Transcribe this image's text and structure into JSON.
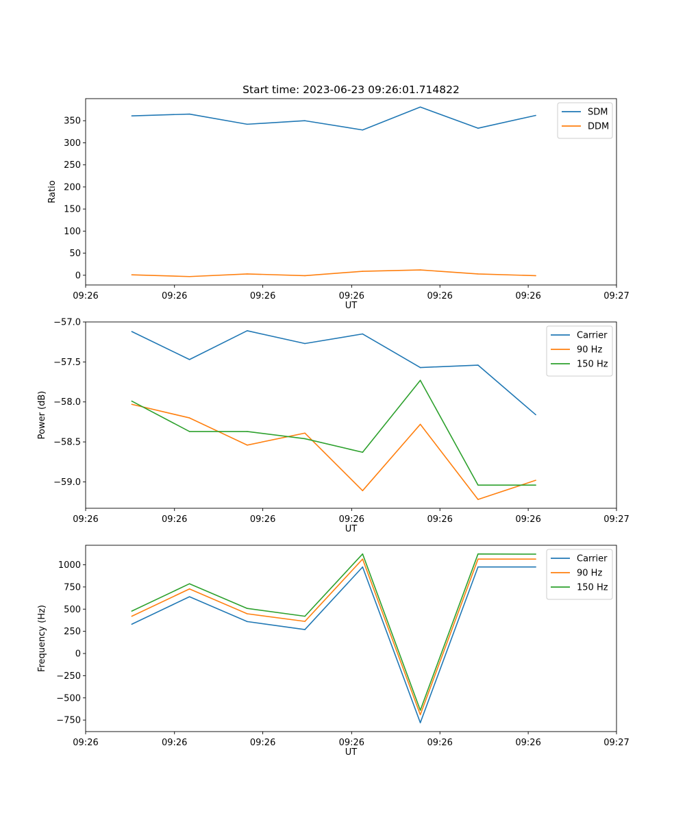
{
  "figure": {
    "title": "Start time: 2023-06-23 09:26:01.714822"
  },
  "chart_data": [
    {
      "type": "line",
      "title": "Start time: 2023-06-23 09:26:01.714822",
      "xlabel": "UT",
      "ylabel": "Ratio",
      "x": [
        1,
        2,
        3,
        4,
        5,
        6,
        7,
        8
      ],
      "xlim": [
        0.2,
        9.4
      ],
      "x_ticks": [
        0.2,
        1.74,
        3.27,
        4.81,
        6.34,
        7.87,
        9.4
      ],
      "x_tick_labels": [
        "09:26",
        "09:26",
        "09:26",
        "09:26",
        "09:26",
        "09:26",
        "09:27"
      ],
      "ylim": [
        -22,
        400
      ],
      "y_ticks": [
        0,
        50,
        100,
        150,
        200,
        250,
        300,
        350
      ],
      "y_tick_labels": [
        "0",
        "50",
        "100",
        "150",
        "200",
        "250",
        "300",
        "350"
      ],
      "grid": false,
      "legend_position": "upper right",
      "series": [
        {
          "name": "SDM",
          "color": "#1f77b4",
          "values": [
            361,
            365,
            342,
            350,
            329,
            381,
            333,
            362
          ]
        },
        {
          "name": "DDM",
          "color": "#ff7f0e",
          "values": [
            1,
            -3,
            3,
            -1,
            9,
            12,
            3,
            -1
          ]
        }
      ]
    },
    {
      "type": "line",
      "xlabel": "UT",
      "ylabel": "Power (dB)",
      "x": [
        1,
        2,
        3,
        4,
        5,
        6,
        7,
        8
      ],
      "xlim": [
        0.2,
        9.4
      ],
      "x_ticks": [
        0.2,
        1.74,
        3.27,
        4.81,
        6.34,
        7.87,
        9.4
      ],
      "x_tick_labels": [
        "09:26",
        "09:26",
        "09:26",
        "09:26",
        "09:26",
        "09:26",
        "09:27"
      ],
      "ylim": [
        -59.33,
        -57.0
      ],
      "y_ticks": [
        -57.0,
        -57.5,
        -58.0,
        -58.5,
        -59.0
      ],
      "y_tick_labels": [
        "−57.0",
        "−57.5",
        "−58.0",
        "−58.5",
        "−59.0"
      ],
      "grid": false,
      "legend_position": "upper right",
      "series": [
        {
          "name": "Carrier",
          "color": "#1f77b4",
          "values": [
            -57.12,
            -57.47,
            -57.11,
            -57.27,
            -57.15,
            -57.57,
            -57.54,
            -58.16
          ]
        },
        {
          "name": "90 Hz",
          "color": "#ff7f0e",
          "values": [
            -58.03,
            -58.2,
            -58.54,
            -58.39,
            -59.11,
            -58.28,
            -59.22,
            -58.98
          ]
        },
        {
          "name": "150 Hz",
          "color": "#2ca02c",
          "values": [
            -57.99,
            -58.37,
            -58.37,
            -58.46,
            -58.63,
            -57.73,
            -59.04,
            -59.04
          ]
        }
      ]
    },
    {
      "type": "line",
      "xlabel": "UT",
      "ylabel": "Frequency (Hz)",
      "x": [
        1,
        2,
        3,
        4,
        5,
        6,
        7,
        8
      ],
      "xlim": [
        0.2,
        9.4
      ],
      "x_ticks": [
        0.2,
        1.74,
        3.27,
        4.81,
        6.34,
        7.87,
        9.4
      ],
      "x_tick_labels": [
        "09:26",
        "09:26",
        "09:26",
        "09:26",
        "09:26",
        "09:26",
        "09:27"
      ],
      "ylim": [
        -880,
        1220
      ],
      "y_ticks": [
        1000,
        750,
        500,
        250,
        0,
        -250,
        -500,
        -750
      ],
      "y_tick_labels": [
        "1000",
        "750",
        "500",
        "250",
        "0",
        "−250",
        "−500",
        "−750"
      ],
      "grid": false,
      "legend_position": "upper right",
      "series": [
        {
          "name": "Carrier",
          "color": "#1f77b4",
          "values": [
            330,
            640,
            360,
            270,
            975,
            -780,
            975,
            975
          ]
        },
        {
          "name": "90 Hz",
          "color": "#ff7f0e",
          "values": [
            420,
            728,
            448,
            362,
            1064,
            -690,
            1064,
            1064
          ]
        },
        {
          "name": "150 Hz",
          "color": "#2ca02c",
          "values": [
            478,
            786,
            508,
            420,
            1122,
            -640,
            1122,
            1120
          ]
        }
      ]
    }
  ]
}
